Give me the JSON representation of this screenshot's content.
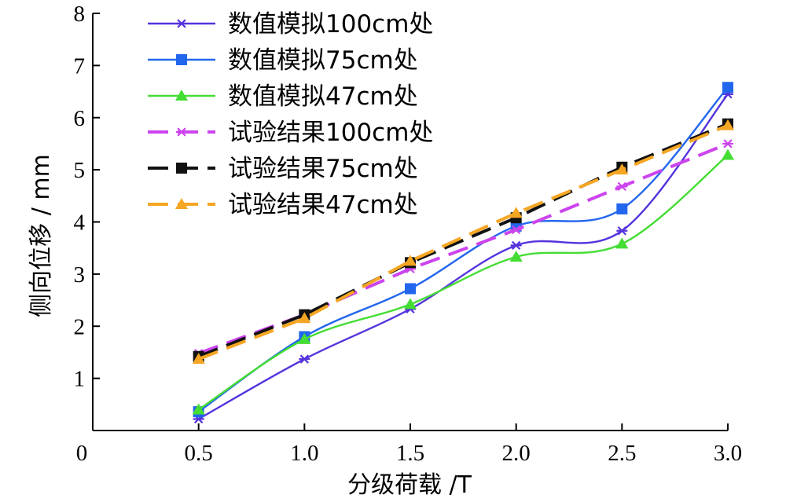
{
  "chart_data": {
    "type": "line",
    "xlabel": "分级荷载 /T",
    "ylabel": "侧向位移 / mm",
    "x": [
      0.5,
      1.0,
      1.5,
      2.0,
      2.5,
      3.0
    ],
    "xlim": [
      0,
      3.0
    ],
    "ylim": [
      0,
      8
    ],
    "x_ticks": [
      "0",
      "0.5",
      "1.0",
      "1.5",
      "2.0",
      "2.5",
      "3.0"
    ],
    "y_ticks": [
      "1",
      "2",
      "3",
      "4",
      "5",
      "6",
      "7",
      "8"
    ],
    "grid": false,
    "legend_position": "top-left",
    "series": [
      {
        "name": "数值模拟100cm处",
        "values": [
          0.22,
          1.37,
          2.33,
          3.55,
          3.83,
          6.45
        ],
        "color": "#5533dd",
        "marker": "asterisk",
        "dashed": false
      },
      {
        "name": "数值模拟75cm处",
        "values": [
          0.36,
          1.8,
          2.72,
          3.92,
          4.25,
          6.58
        ],
        "color": "#2266ee",
        "marker": "square",
        "dashed": false
      },
      {
        "name": "数值模拟47cm处",
        "values": [
          0.4,
          1.75,
          2.42,
          3.33,
          3.58,
          5.28
        ],
        "color": "#44dd33",
        "marker": "triangle",
        "dashed": false
      },
      {
        "name": "试验结果100cm处",
        "values": [
          1.48,
          2.22,
          3.1,
          3.85,
          4.68,
          5.5
        ],
        "color": "#cc44ee",
        "marker": "asterisk",
        "dashed": true
      },
      {
        "name": "试验结果75cm处",
        "values": [
          1.42,
          2.22,
          3.22,
          4.08,
          5.05,
          5.88
        ],
        "color": "#111111",
        "marker": "square",
        "dashed": true
      },
      {
        "name": "试验结果47cm处",
        "values": [
          1.37,
          2.15,
          3.25,
          4.17,
          5.0,
          5.85
        ],
        "color": "#f5a623",
        "marker": "triangle",
        "dashed": true
      }
    ]
  }
}
